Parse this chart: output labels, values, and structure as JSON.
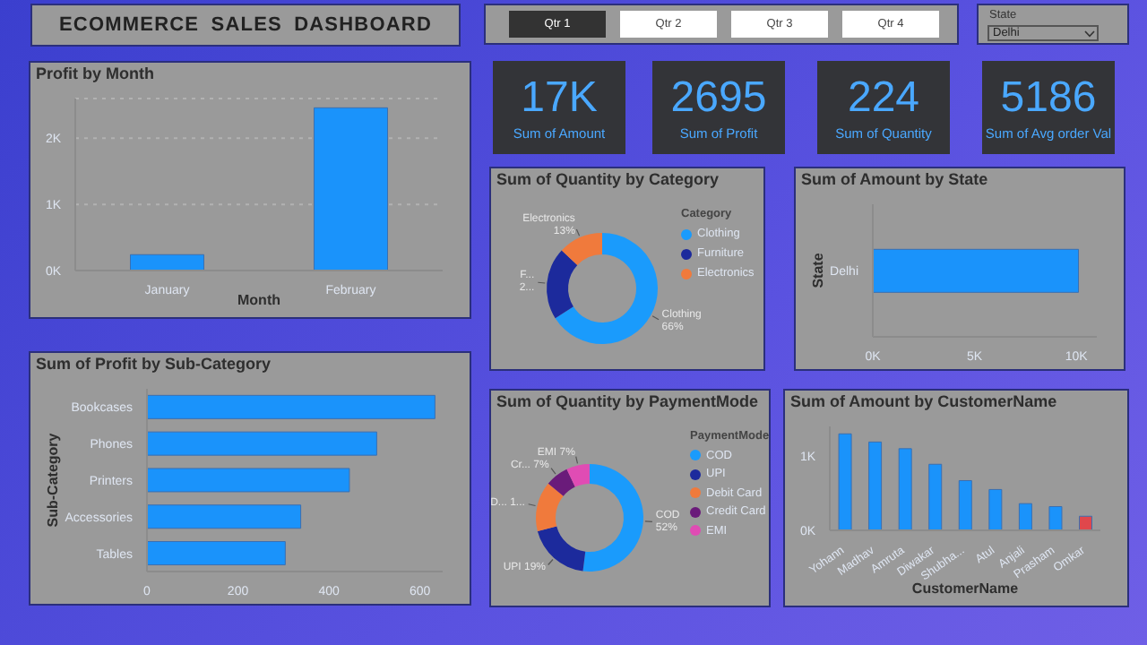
{
  "chart_data": [
    {
      "type": "other",
      "title": "ECOMMERCE SALES DASHBOARD",
      "annotations": [
        "Qtr 1",
        "Qtr 2",
        "Qtr 3",
        "Qtr 4",
        "State",
        "Delhi"
      ]
    },
    {
      "type": "other",
      "annotations": [
        "17K",
        "Sum of Amount",
        "2695",
        "Sum of Profit",
        "224",
        "Sum of Quantity",
        "5186",
        "Sum of Avg order Val"
      ]
    },
    {
      "type": "bar",
      "title": "Profit by Month",
      "xlabel": "Month",
      "categories": [
        "January",
        "February"
      ],
      "values": [
        240,
        2460
      ],
      "color": "#1a93fb",
      "ylim": [
        0,
        2600
      ],
      "yticks": [
        {
          "value": 0,
          "label": "0K"
        },
        {
          "value": 1000,
          "label": "1K"
        },
        {
          "value": 2000,
          "label": "2K"
        }
      ],
      "grid": "y"
    },
    {
      "type": "bar",
      "orientation": "horizontal",
      "title": "Sum of Profit by Sub-Category",
      "ylabel": "Sub-Category",
      "categories": [
        "Bookcases",
        "Phones",
        "Printers",
        "Accessories",
        "Tables"
      ],
      "values": [
        633,
        505,
        445,
        338,
        304
      ],
      "color": "#1a93fb",
      "xlim": [
        0,
        650
      ],
      "xticks": [
        0,
        200,
        400,
        600
      ]
    },
    {
      "type": "donut",
      "title": "Sum of Quantity by Category",
      "legend_title": "Category",
      "legend": "right",
      "categories": [
        "Clothing",
        "Furniture",
        "Electronics"
      ],
      "values": [
        66,
        21,
        13
      ],
      "colors": [
        "#1a9bfc",
        "#1c2a9c",
        "#f07a3c"
      ],
      "value_labels": [
        "Clothing 66%",
        "F... 2...",
        "Electronics 13%"
      ]
    },
    {
      "type": "bar",
      "orientation": "horizontal",
      "title": "Sum of Amount by State",
      "ylabel": "State",
      "categories": [
        "Delhi"
      ],
      "values": [
        10100
      ],
      "color": "#1a93fb",
      "xlim": [
        0,
        11000
      ],
      "xticks": [
        {
          "value": 0,
          "label": "0K"
        },
        {
          "value": 5000,
          "label": "5K"
        },
        {
          "value": 10000,
          "label": "10K"
        }
      ]
    },
    {
      "type": "donut",
      "title": "Sum of Quantity by PaymentMode",
      "legend_title": "PaymentMode",
      "legend": "right",
      "categories": [
        "COD",
        "UPI",
        "Debit Card",
        "Credit Card",
        "EMI"
      ],
      "values": [
        52,
        19,
        15,
        7,
        7
      ],
      "colors": [
        "#1a9bfc",
        "#1c2a9c",
        "#f07a3c",
        "#6a1b7a",
        "#e04cb4"
      ],
      "value_labels": [
        "COD 52%",
        "UPI 19%",
        "D... 1...",
        "Cr... 7%",
        "EMI 7%"
      ]
    },
    {
      "type": "bar",
      "title": "Sum of Amount by CustomerName",
      "xlabel": "CustomerName",
      "categories": [
        "Yohann",
        "Madhav",
        "Amruta",
        "Diwakar",
        "Shubha...",
        "Atul",
        "Anjali",
        "Prasham",
        "Omkar"
      ],
      "values": [
        1300,
        1190,
        1100,
        890,
        670,
        550,
        360,
        320,
        190
      ],
      "colors": [
        "#1a93fb",
        "#1a93fb",
        "#1a93fb",
        "#1a93fb",
        "#1a93fb",
        "#1a93fb",
        "#1a93fb",
        "#1a93fb",
        "#e0474c"
      ],
      "ylim": [
        0,
        1400
      ],
      "yticks": [
        {
          "value": 0,
          "label": "0K"
        },
        {
          "value": 1000,
          "label": "1K"
        }
      ]
    }
  ]
}
